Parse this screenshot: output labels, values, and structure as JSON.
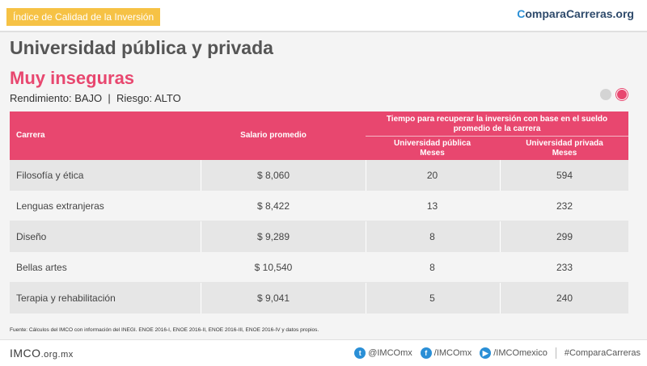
{
  "header": {
    "tag": "Índice de Calidad de la Inversión",
    "brand_prefix": "C",
    "brand_rest": "omparaCarreras.org"
  },
  "title": "Universidad pública y privada",
  "subtitle": "Muy inseguras",
  "meta": "Rendimiento: BAJO  |  Riesgo: ALTO",
  "table": {
    "headers": {
      "carrera": "Carrera",
      "salario": "Salario promedio",
      "tiempo_line1": "Tiempo para recuperar la inversión con base en el sueldo",
      "tiempo_line2": "promedio de la carrera",
      "pub_line1": "Universidad pública",
      "pub_line2": "Meses",
      "priv_line1": "Universidad privada",
      "priv_line2": "Meses"
    },
    "rows": [
      {
        "carrera": "Filosofía y ética",
        "salario": "$ 8,060",
        "publica": "20",
        "privada": "594"
      },
      {
        "carrera": "Lenguas extranjeras",
        "salario": "$ 8,422",
        "publica": "13",
        "privada": "232"
      },
      {
        "carrera": "Diseño",
        "salario": "$ 9,289",
        "publica": "8",
        "privada": "299"
      },
      {
        "carrera": "Bellas artes",
        "salario": "$ 10,540",
        "publica": "8",
        "privada": "233"
      },
      {
        "carrera": "Terapia y rehabilitación",
        "salario": "$ 9,041",
        "publica": "5",
        "privada": "240"
      }
    ]
  },
  "source": "Fuente: Cálculos del IMCO con información del INEGI. ENOE 2016-I, ENOE 2016-II, ENOE 2016-III, ENOE 2016-IV y datos propios.",
  "footer": {
    "logo": "IMCO",
    "logo_suffix": ".org.mx",
    "twitter": "@IMCOmx",
    "facebook": "/IMCOmx",
    "youtube": "/IMCOmexico",
    "hashtag": "#ComparaCarreras"
  },
  "colors": {
    "accent": "#e8476f",
    "tag": "#f6c245",
    "brand": "#2a8fd6"
  }
}
